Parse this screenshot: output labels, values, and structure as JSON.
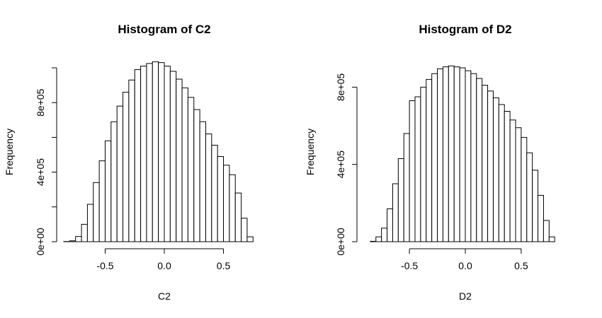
{
  "chart_data": [
    {
      "type": "bar",
      "title": "Histogram of C2",
      "xlabel": "C2",
      "ylabel": "Frequency",
      "xlim": [
        -0.85,
        0.85
      ],
      "ylim": [
        0,
        1000000
      ],
      "xticks": [
        -0.5,
        0.0,
        0.5
      ],
      "xtick_labels": [
        "-0.5",
        "0.0",
        "0.5"
      ],
      "yticks": [
        0,
        200000,
        400000,
        600000,
        800000,
        1000000
      ],
      "ytick_labels": [
        "0e+00",
        "",
        "4e+05",
        "",
        "8e+05",
        ""
      ],
      "bin_edges": [
        -0.85,
        -0.8,
        -0.75,
        -0.7,
        -0.65,
        -0.6,
        -0.55,
        -0.5,
        -0.45,
        -0.4,
        -0.35,
        -0.3,
        -0.25,
        -0.2,
        -0.15,
        -0.1,
        -0.05,
        0.0,
        0.05,
        0.1,
        0.15,
        0.2,
        0.25,
        0.3,
        0.35,
        0.4,
        0.45,
        0.5,
        0.55,
        0.6,
        0.65,
        0.7,
        0.75,
        0.8,
        0.85
      ],
      "values": [
        1000,
        5000,
        30000,
        100000,
        215000,
        340000,
        465000,
        580000,
        690000,
        780000,
        860000,
        930000,
        990000,
        1010000,
        1025000,
        1035000,
        1030000,
        1010000,
        980000,
        935000,
        885000,
        830000,
        760000,
        690000,
        620000,
        555000,
        490000,
        440000,
        385000,
        280000,
        135000,
        28000,
        0,
        0
      ]
    },
    {
      "type": "bar",
      "title": "Histogram of D2",
      "xlabel": "D2",
      "ylabel": "Frequency",
      "xlim": [
        -0.9,
        0.9
      ],
      "ylim": [
        0,
        900000
      ],
      "xticks": [
        -0.5,
        0.0,
        0.5
      ],
      "xtick_labels": [
        "-0.5",
        "0.0",
        "0.5"
      ],
      "yticks": [
        0,
        400000,
        800000
      ],
      "ytick_labels": [
        "0e+00",
        "4e+05",
        "8e+05"
      ],
      "bin_edges": [
        -0.9,
        -0.85,
        -0.8,
        -0.75,
        -0.7,
        -0.65,
        -0.6,
        -0.55,
        -0.5,
        -0.45,
        -0.4,
        -0.35,
        -0.3,
        -0.25,
        -0.2,
        -0.15,
        -0.1,
        -0.05,
        0.0,
        0.05,
        0.1,
        0.15,
        0.2,
        0.25,
        0.3,
        0.35,
        0.4,
        0.45,
        0.5,
        0.55,
        0.6,
        0.65,
        0.7,
        0.75,
        0.8,
        0.85,
        0.9
      ],
      "values": [
        0,
        2000,
        25000,
        70000,
        170000,
        300000,
        430000,
        560000,
        730000,
        750000,
        800000,
        840000,
        870000,
        895000,
        905000,
        910000,
        905000,
        900000,
        885000,
        870000,
        845000,
        810000,
        780000,
        745000,
        710000,
        675000,
        630000,
        590000,
        540000,
        460000,
        370000,
        240000,
        110000,
        25000,
        0,
        0
      ]
    }
  ]
}
